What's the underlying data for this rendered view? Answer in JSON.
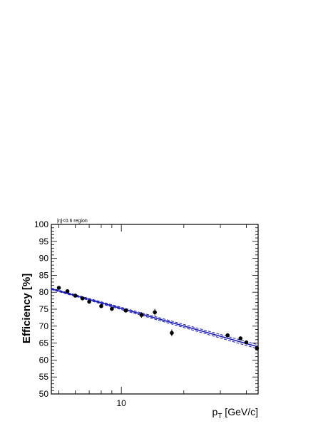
{
  "chart_data": {
    "type": "scatter",
    "annotation": "|η|<0.6 region",
    "ylabel": "Efficiency [%]",
    "xlabel": {
      "main": "p",
      "sub": "T",
      "rest": " [GeV/c]"
    },
    "x_tick_labels": [
      {
        "value": 10,
        "label": "10"
      }
    ],
    "y_tick_labels": [
      "50",
      "55",
      "60",
      "65",
      "70",
      "75",
      "80",
      "85",
      "90",
      "95",
      "100"
    ],
    "xlim": [
      4.6,
      45.6
    ],
    "ylim": [
      50,
      100
    ],
    "xscale": "log",
    "grid": false,
    "points": [
      {
        "x": 5.0,
        "y": 81.3,
        "err": 0.4
      },
      {
        "x": 5.5,
        "y": 80.3,
        "err": 0.4
      },
      {
        "x": 6.0,
        "y": 79.0,
        "err": 0.4
      },
      {
        "x": 6.5,
        "y": 78.2,
        "err": 0.4
      },
      {
        "x": 7.0,
        "y": 77.2,
        "err": 0.4
      },
      {
        "x": 8.0,
        "y": 75.9,
        "err": 0.4
      },
      {
        "x": 9.0,
        "y": 75.1,
        "err": 0.4
      },
      {
        "x": 10.5,
        "y": 74.6,
        "err": 0.4
      },
      {
        "x": 12.5,
        "y": 73.3,
        "err": 0.8
      },
      {
        "x": 14.5,
        "y": 74.1,
        "err": 1.0
      },
      {
        "x": 17.5,
        "y": 68.0,
        "err": 1.0
      },
      {
        "x": 32.5,
        "y": 67.3,
        "err": 0.6
      },
      {
        "x": 37.5,
        "y": 66.4,
        "err": 0.5
      },
      {
        "x": 40.0,
        "y": 65.2,
        "err": 0.6
      },
      {
        "x": 45.0,
        "y": 63.5,
        "err": 0.8
      }
    ],
    "fit": {
      "x_range": [
        4.6,
        45.6
      ],
      "central": [
        81.0,
        63.9
      ],
      "upper": [
        81.2,
        64.5
      ],
      "lower": [
        80.8,
        63.3
      ],
      "color": "#1a1ab8"
    }
  }
}
